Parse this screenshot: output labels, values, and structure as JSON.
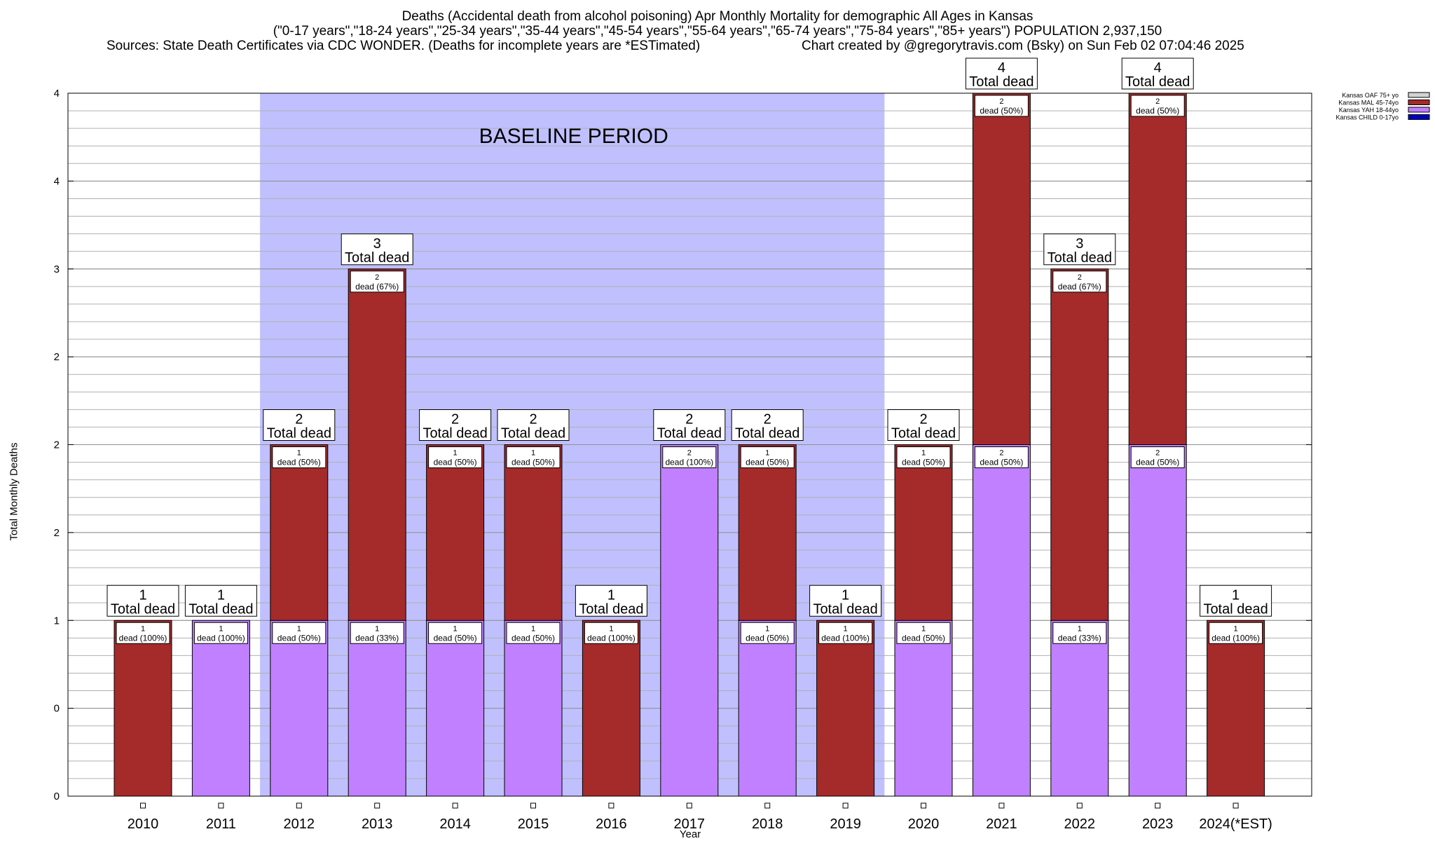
{
  "header": {
    "title": "Deaths (Accidental death from alcohol poisoning) Apr Monthly Mortality for demographic All Ages in Kansas",
    "subtitle": "(\"0-17 years\",\"18-24 years\",\"25-34 years\",\"35-44 years\",\"45-54 years\",\"55-64 years\",\"65-74 years\",\"75-84 years\",\"85+ years\") POPULATION 2,937,150",
    "sources": "Sources: State Death Certificates via CDC WONDER. (Deaths for incomplete years are *ESTimated)",
    "credit": "Chart created by @gregorytravis.com (Bsky) on Sun Feb 02 07:04:46 2025"
  },
  "chart_data": {
    "type": "bar",
    "stacked": true,
    "categories": [
      "2010",
      "2011",
      "2012",
      "2013",
      "2014",
      "2015",
      "2016",
      "2017",
      "2018",
      "2019",
      "2020",
      "2021",
      "2022",
      "2023",
      "2024(*EST)"
    ],
    "series": [
      {
        "name": "Kansas CHILD 0-17yo",
        "color": "#0000c0",
        "values": [
          0,
          0,
          0,
          0,
          0,
          0,
          0,
          0,
          0,
          0,
          0,
          0,
          0,
          0,
          0
        ]
      },
      {
        "name": "Kansas YAH 18-44yo",
        "color": "#c080ff",
        "values": [
          0,
          1,
          1,
          1,
          1,
          1,
          0,
          2,
          1,
          0,
          1,
          2,
          1,
          2,
          0
        ]
      },
      {
        "name": "Kansas MAL 45-74yo",
        "color": "#a52a2a",
        "values": [
          1,
          0,
          1,
          2,
          1,
          1,
          1,
          0,
          1,
          1,
          1,
          2,
          2,
          2,
          1
        ]
      },
      {
        "name": "Kansas OAF 75+ yo",
        "color": "#d3d3d3",
        "values": [
          0,
          0,
          0,
          0,
          0,
          0,
          0,
          0,
          0,
          0,
          0,
          0,
          0,
          0,
          0
        ]
      }
    ],
    "totals": [
      1,
      1,
      2,
      3,
      2,
      2,
      1,
      2,
      2,
      1,
      2,
      4,
      3,
      4,
      1
    ],
    "total_label_suffix": "Total dead",
    "segment_label_prefix": "dead",
    "ylabel": "Total Monthly Deaths",
    "xlabel": "Year",
    "ylim": [
      0,
      4
    ],
    "yticks": [
      0,
      0.5,
      1,
      1.5,
      2,
      2.5,
      3,
      3.5,
      4
    ],
    "ytick_labels": [
      "0",
      "0",
      "1",
      "2",
      "2",
      "2",
      "3",
      "4",
      "4"
    ],
    "minor_grid_step": 0.1,
    "grid": true,
    "legend_position": "top-right",
    "baseline_period": {
      "label": "BASELINE PERIOD",
      "from": "2012",
      "to": "2019",
      "color": "#c0c0ff"
    }
  }
}
